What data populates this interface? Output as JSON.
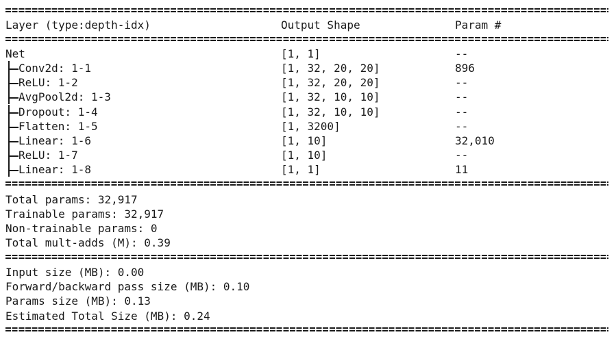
{
  "header": {
    "layer": "Layer (type:depth-idx)",
    "output_shape": "Output Shape",
    "param": "Param #"
  },
  "rows": [
    {
      "layer": "Net",
      "shape": "[1, 1]",
      "param": "--"
    },
    {
      "layer": "Conv2d: 1-1",
      "shape": "[1, 32, 20, 20]",
      "param": "896"
    },
    {
      "layer": "ReLU: 1-2",
      "shape": "[1, 32, 20, 20]",
      "param": "--"
    },
    {
      "layer": "AvgPool2d: 1-3",
      "shape": "[1, 32, 10, 10]",
      "param": "--"
    },
    {
      "layer": "Dropout: 1-4",
      "shape": "[1, 32, 10, 10]",
      "param": "--"
    },
    {
      "layer": "Flatten: 1-5",
      "shape": "[1, 3200]",
      "param": "--"
    },
    {
      "layer": "Linear: 1-6",
      "shape": "[1, 10]",
      "param": "32,010"
    },
    {
      "layer": "ReLU: 1-7",
      "shape": "[1, 10]",
      "param": "--"
    },
    {
      "layer": "Linear: 1-8",
      "shape": "[1, 1]",
      "param": "11"
    }
  ],
  "params_summary": {
    "total": "Total params: 32,917",
    "trainable": "Trainable params: 32,917",
    "non_trainable": "Non-trainable params: 0",
    "mult_adds": "Total mult-adds (M): 0.39"
  },
  "size_summary": {
    "input": "Input size (MB): 0.00",
    "forward_backward": "Forward/backward pass size (MB): 0.10",
    "params": "Params size (MB): 0.13",
    "estimated_total": "Estimated Total Size (MB): 0.24"
  }
}
